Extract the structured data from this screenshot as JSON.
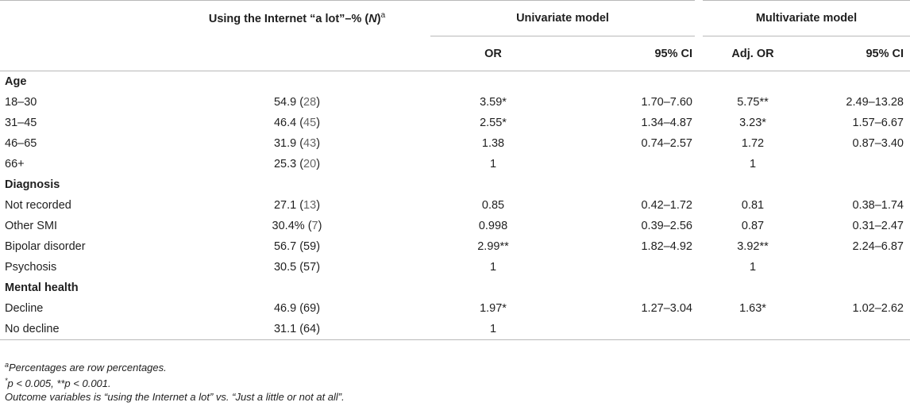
{
  "header": {
    "col_pct_main": "Using the Internet “a lot”–% (",
    "col_pct_n": "N",
    "col_pct_close": ")",
    "col_pct_sup": "a",
    "univariate": "Univariate model",
    "multivariate": "Multivariate model",
    "or": "OR",
    "ci1": "95% CI",
    "adj_or": "Adj. OR",
    "ci2": "95% CI"
  },
  "sections": [
    {
      "title": "Age",
      "rows": [
        {
          "label": "18–30",
          "pct": "54.9",
          "n": "28",
          "or": "3.59*",
          "ci": "1.70–7.60",
          "adj_or": "5.75**",
          "adj_ci": "2.49–13.28"
        },
        {
          "label": "31–45",
          "pct": "46.4",
          "n": "45",
          "or": "2.55*",
          "ci": "1.34–4.87",
          "adj_or": "3.23*",
          "adj_ci": "1.57–6.67"
        },
        {
          "label": "46–65",
          "pct": "31.9",
          "n": "43",
          "or": "1.38",
          "ci": "0.74–2.57",
          "adj_or": "1.72",
          "adj_ci": "0.87–3.40"
        },
        {
          "label": "66+",
          "pct": "25.3",
          "n": "20",
          "or": "1",
          "ci": "",
          "adj_or": "1",
          "adj_ci": ""
        }
      ]
    },
    {
      "title": "Diagnosis",
      "rows": [
        {
          "label": "Not recorded",
          "pct": "27.1",
          "n": "13",
          "or": "0.85",
          "ci": "0.42–1.72",
          "adj_or": "0.81",
          "adj_ci": "0.38–1.74"
        },
        {
          "label": "Other SMI",
          "pct": "30.4%",
          "n": "7",
          "or": "0.998",
          "ci": "0.39–2.56",
          "adj_or": "0.87",
          "adj_ci": "0.31–2.47"
        },
        {
          "label": "Bipolar disorder",
          "pct": "56.7",
          "n": "59",
          "or": "2.99**",
          "ci": "1.82–4.92",
          "adj_or": "3.92**",
          "adj_ci": "2.24–6.87"
        },
        {
          "label": "Psychosis",
          "pct": "30.5",
          "n": "57",
          "or": "1",
          "ci": "",
          "adj_or": "1",
          "adj_ci": ""
        }
      ]
    },
    {
      "title": "Mental health",
      "rows": [
        {
          "label": "Decline",
          "pct": "46.9",
          "n": "69",
          "or": "1.97*",
          "ci": "1.27–3.04",
          "adj_or": "1.63*",
          "adj_ci": "1.02–2.62"
        },
        {
          "label": "No decline",
          "pct": "31.1",
          "n": "64",
          "or": "1",
          "ci": "",
          "adj_or": "",
          "adj_ci": ""
        }
      ]
    }
  ],
  "footnotes": {
    "note_a_sup": "a",
    "note_a": "Percentages are row percentages.",
    "note_p_sup": "*",
    "note_p": "p < 0.005, **p < 0.001.",
    "note_outcome": "Outcome variables is “using the Internet a lot” vs. “Just a little or not at all”."
  }
}
